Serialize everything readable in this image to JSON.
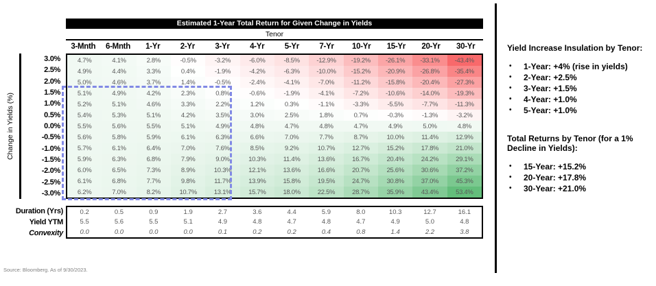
{
  "title": "Estimated 1-Year Total Return for Given Change in Yields",
  "tenor_label": "Tenor",
  "y_axis_label": "Change in Yields (%)",
  "source": "Source: Bloomberg. As of 9/30/2023.",
  "chart_data": {
    "type": "heatmap",
    "title": "Estimated 1-Year Total Return for Given Change in Yields",
    "x_group_label": "Tenor",
    "ylabel": "Change in Yields (%)",
    "columns": [
      "3-Mnth",
      "6-Mnth",
      "1-Yr",
      "2-Yr",
      "3-Yr",
      "4-Yr",
      "5-Yr",
      "7-Yr",
      "10-Yr",
      "15-Yr",
      "20-Yr",
      "30-Yr"
    ],
    "rows": [
      "3.0%",
      "2.5%",
      "2.0%",
      "1.5%",
      "1.0%",
      "0.5%",
      "0.0%",
      "-0.5%",
      "-1.0%",
      "-1.5%",
      "-2.0%",
      "-2.5%",
      "-3.0%"
    ],
    "values_pct": [
      [
        4.7,
        4.1,
        2.8,
        -0.5,
        -3.2,
        -6.0,
        -8.5,
        -12.9,
        -19.2,
        -26.1,
        -33.1,
        -43.4
      ],
      [
        4.9,
        4.4,
        3.3,
        0.4,
        -1.9,
        -4.2,
        -6.3,
        -10.0,
        -15.2,
        -20.9,
        -26.8,
        -35.4
      ],
      [
        5.0,
        4.6,
        3.7,
        1.4,
        -0.5,
        -2.4,
        -4.1,
        -7.0,
        -11.2,
        -15.8,
        -20.4,
        -27.3
      ],
      [
        5.1,
        4.9,
        4.2,
        2.3,
        0.8,
        -0.6,
        -1.9,
        -4.1,
        -7.2,
        -10.6,
        -14.0,
        -19.3
      ],
      [
        5.2,
        5.1,
        4.6,
        3.3,
        2.2,
        1.2,
        0.3,
        -1.1,
        -3.3,
        -5.5,
        -7.7,
        -11.3
      ],
      [
        5.4,
        5.3,
        5.1,
        4.2,
        3.5,
        3.0,
        2.5,
        1.8,
        0.7,
        -0.3,
        -1.3,
        -3.2
      ],
      [
        5.5,
        5.6,
        5.5,
        5.1,
        4.9,
        4.8,
        4.7,
        4.8,
        4.7,
        4.9,
        5.0,
        4.8
      ],
      [
        5.6,
        5.8,
        5.9,
        6.1,
        6.3,
        6.6,
        7.0,
        7.7,
        8.7,
        10.0,
        11.4,
        12.9
      ],
      [
        5.7,
        6.1,
        6.4,
        7.0,
        7.6,
        8.5,
        9.2,
        10.7,
        12.7,
        15.2,
        17.8,
        21.0
      ],
      [
        5.9,
        6.3,
        6.8,
        7.9,
        9.0,
        10.3,
        11.4,
        13.6,
        16.7,
        20.4,
        24.2,
        29.1
      ],
      [
        6.0,
        6.5,
        7.3,
        8.9,
        10.3,
        12.1,
        13.6,
        16.6,
        20.7,
        25.6,
        30.6,
        37.2
      ],
      [
        6.1,
        6.8,
        7.7,
        9.8,
        11.7,
        13.9,
        15.8,
        19.5,
        24.7,
        30.8,
        37.0,
        45.3
      ],
      [
        6.2,
        7.0,
        8.2,
        10.7,
        13.1,
        15.7,
        18.0,
        22.5,
        28.7,
        35.9,
        43.4,
        53.4
      ]
    ],
    "color_scale": {
      "min": -43.4,
      "mid": 0,
      "max": 53.4,
      "min_color": "#F8696B",
      "mid_color": "#FFFFFF",
      "max_color": "#63BE7B"
    },
    "highlight_box": {
      "columns": "3-Mnth through 3-Yr",
      "rows": "1.5% through -3.0%",
      "style": "dashed",
      "color": "#8189E5"
    },
    "footer_rows": [
      {
        "label": "Duration (Yrs)",
        "italic": false,
        "values": [
          0.2,
          0.5,
          0.9,
          1.9,
          2.7,
          3.6,
          4.4,
          5.9,
          8.0,
          10.3,
          12.7,
          16.1
        ]
      },
      {
        "label": "Yield YTM",
        "italic": false,
        "values": [
          5.5,
          5.6,
          5.5,
          5.1,
          4.9,
          4.8,
          4.7,
          4.8,
          4.7,
          4.9,
          5.0,
          4.8
        ]
      },
      {
        "label": "Convexity",
        "italic": true,
        "values": [
          0.0,
          0.0,
          0.0,
          0.0,
          0.1,
          0.2,
          0.2,
          0.4,
          0.8,
          1.4,
          2.2,
          3.8
        ]
      }
    ]
  },
  "side_panel": {
    "section1": {
      "heading": "Yield Increase Insulation by Tenor:",
      "bullets": [
        "1-Year: +4% (rise in yields)",
        "2-Year: +2.5%",
        "3-Year: +1.5%",
        "4-Year: +1.0%",
        "5-Year: +1.0%"
      ]
    },
    "section2": {
      "heading": "Total Returns by Tenor (for a 1% Decline in Yields):",
      "bullets": [
        "15-Year: +15.2%",
        "20-Year: +17.8%",
        "30-Year: +21.0%"
      ]
    }
  }
}
